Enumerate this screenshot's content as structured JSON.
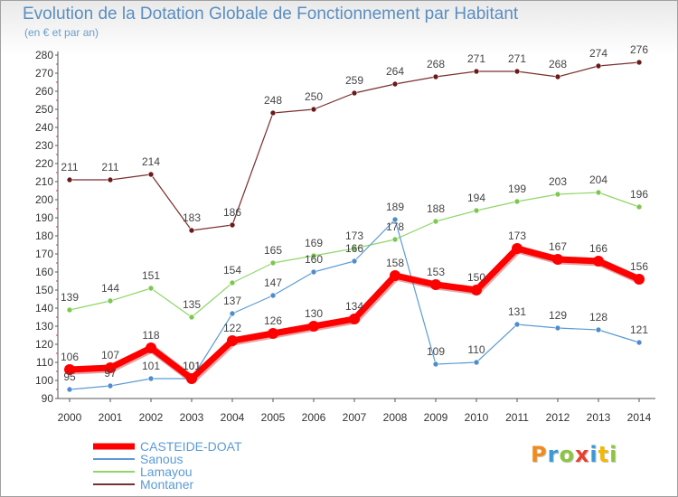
{
  "header": {
    "title": "Evolution de la Dotation Globale de Fonctionnement par Habitant",
    "subtitle": "(en € et par an)"
  },
  "logo": {
    "text": "Proxiti",
    "letters": [
      {
        "ch": "P",
        "color": "#f08a1c"
      },
      {
        "ch": "r",
        "color": "#3a9ad8"
      },
      {
        "ch": "o",
        "color": "#8cc63f"
      },
      {
        "ch": "x",
        "color": "#e8402c"
      },
      {
        "ch": "i",
        "color": "#3a9ad8"
      },
      {
        "ch": "t",
        "color": "#f5b800"
      },
      {
        "ch": "i",
        "color": "#8cc63f"
      }
    ]
  },
  "chart_data": {
    "type": "line",
    "x": [
      "2000",
      "2001",
      "2002",
      "2003",
      "2004",
      "2005",
      "2006",
      "2007",
      "2008",
      "2009",
      "2010",
      "2011",
      "2012",
      "2013",
      "2014"
    ],
    "ylim": [
      90,
      280
    ],
    "yticks": [
      90,
      100,
      110,
      120,
      130,
      140,
      150,
      160,
      170,
      180,
      190,
      200,
      210,
      220,
      230,
      240,
      250,
      260,
      270,
      280
    ],
    "grid": false,
    "legend_position": "bottom-left",
    "series": [
      {
        "name": "Montaner",
        "color": "#7a2e2e",
        "marker": "#6b1a1a",
        "width": 1.2,
        "radius": 3,
        "values": [
          211,
          211,
          214,
          183,
          186,
          248,
          250,
          259,
          264,
          268,
          271,
          271,
          268,
          274,
          276
        ]
      },
      {
        "name": "Lamayou",
        "color": "#8fd668",
        "marker": "#7cc84f",
        "width": 1.2,
        "radius": 3,
        "values": [
          139,
          144,
          151,
          135,
          154,
          165,
          169,
          173,
          178,
          188,
          194,
          199,
          203,
          204,
          196
        ]
      },
      {
        "name": "Sanous",
        "color": "#5b9bd5",
        "marker": "#4f8ccb",
        "width": 1.2,
        "radius": 3,
        "values": [
          95,
          97,
          101,
          101,
          137,
          147,
          160,
          166,
          189,
          109,
          110,
          131,
          129,
          128,
          121
        ]
      },
      {
        "name": "CASTEIDE-DOAT",
        "color": "#ff0000",
        "marker": "#ff0000",
        "width": 7,
        "radius": 6,
        "values": [
          106,
          107,
          118,
          101,
          122,
          126,
          130,
          134,
          158,
          153,
          150,
          173,
          167,
          166,
          156
        ]
      }
    ],
    "legend_order": [
      "CASTEIDE-DOAT",
      "Sanous",
      "Lamayou",
      "Montaner"
    ]
  }
}
